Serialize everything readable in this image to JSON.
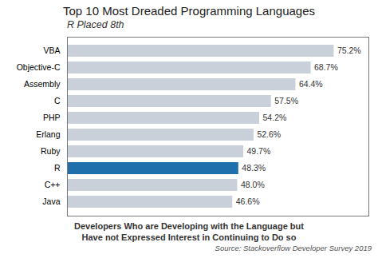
{
  "chart_data": {
    "type": "bar",
    "orientation": "horizontal",
    "title": "Top 10 Most Dreaded Programming Languages",
    "subtitle": "R Placed 8th",
    "categories": [
      "VBA",
      "Objective-C",
      "Assembly",
      "C",
      "PHP",
      "Erlang",
      "Ruby",
      "R",
      "C++",
      "Java"
    ],
    "values": [
      75.2,
      68.7,
      64.4,
      57.5,
      54.2,
      52.6,
      49.7,
      48.3,
      48.0,
      46.6
    ],
    "value_labels": [
      "75.2%",
      "68.7%",
      "64.4%",
      "57.5%",
      "54.2%",
      "52.6%",
      "49.7%",
      "48.3%",
      "48.0%",
      "46.6%"
    ],
    "colors": [
      "#c9d0d9",
      "#c9d0d9",
      "#c9d0d9",
      "#c9d0d9",
      "#c9d0d9",
      "#c9d0d9",
      "#c9d0d9",
      "#1f6fad",
      "#c9d0d9",
      "#c9d0d9"
    ],
    "xlabel": "Developers Who are Developing with the Language but\nHave not Expressed Interest in Continuing to Do so",
    "caption": "Source: Stackoverflow Developer Survey 2019",
    "xlim": [
      0,
      85
    ],
    "xticks": [],
    "tick_labels": "y",
    "data_labels": true,
    "grid": false
  }
}
